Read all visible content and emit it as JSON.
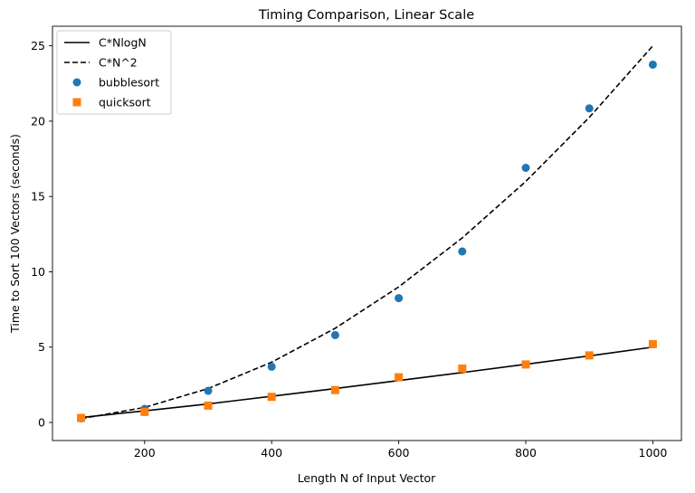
{
  "chart_data": {
    "type": "scatter",
    "title": "Timing Comparison, Linear Scale",
    "xlabel": "Length N of Input Vector",
    "ylabel": "Time to Sort 100 Vectors (seconds)",
    "xlim": [
      55,
      1045
    ],
    "ylim": [
      -1.2,
      26.3
    ],
    "xticks": [
      200,
      400,
      600,
      800,
      1000
    ],
    "yticks": [
      0,
      5,
      10,
      15,
      20,
      25
    ],
    "grid": false,
    "legend_position": "top-left",
    "x": [
      100,
      200,
      300,
      400,
      500,
      600,
      700,
      800,
      900,
      1000
    ],
    "series": [
      {
        "name": "C*NlogN",
        "kind": "line",
        "style": "solid",
        "color": "#000000",
        "values": [
          0.33,
          0.77,
          1.23,
          1.74,
          2.25,
          2.78,
          3.31,
          3.86,
          4.42,
          5.0
        ]
      },
      {
        "name": "C*N^2",
        "kind": "line",
        "style": "dashed",
        "color": "#000000",
        "values": [
          0.25,
          1.0,
          2.25,
          4.0,
          6.25,
          9.0,
          12.25,
          16.0,
          20.25,
          25.0
        ]
      },
      {
        "name": "bubblesort",
        "kind": "scatter",
        "marker": "circle",
        "color": "#1f77b4",
        "values": [
          0.27,
          0.9,
          2.1,
          3.7,
          5.8,
          8.25,
          11.35,
          16.9,
          20.85,
          23.75
        ]
      },
      {
        "name": "quicksort",
        "kind": "scatter",
        "marker": "square",
        "color": "#ff7f0e",
        "values": [
          0.3,
          0.7,
          1.12,
          1.7,
          2.15,
          3.0,
          3.58,
          3.85,
          4.45,
          5.2
        ]
      }
    ]
  }
}
